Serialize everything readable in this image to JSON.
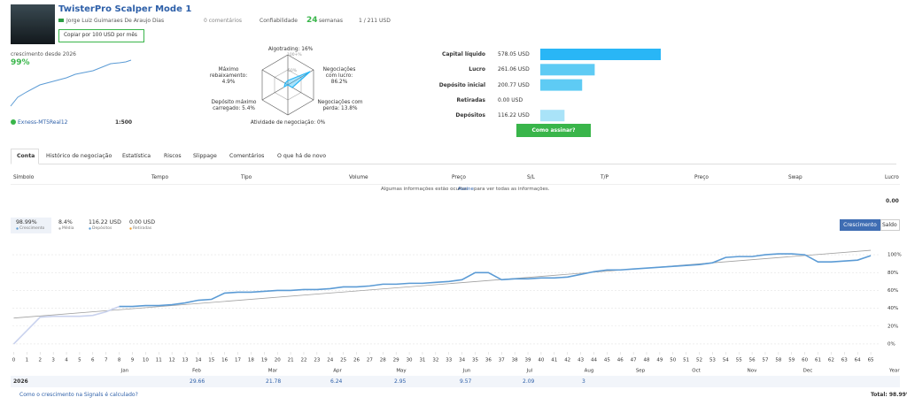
{
  "header": {
    "title": "TwisterPro Scalper Mode 1",
    "author": "Jorge Luiz Guimaraes De Araujo Dias",
    "comments": "0 comentários",
    "reliability": "Confiabilidade",
    "weeks": "24",
    "weeks_unit": "semanas",
    "subscribers": "1 / 211 USD",
    "copy_button": "Copiar por 100 USD por mês"
  },
  "summary": {
    "growth_label": "crescimento desde 2026",
    "growth": "99%",
    "account": "Exness-MT5Real12",
    "leverage": "1:500"
  },
  "radar": {
    "labels": [
      "Algotrading: 16%",
      "Negociações com lucro: 86.2%",
      "Negociações com perda: 13.8%",
      "Atividade de negociação: 0%",
      "Depósito máximo carregado: 5.4%",
      "Máximo rebaixamento: 4.9%"
    ],
    "scale": [
      "100+%",
      "50%"
    ]
  },
  "balance_chart": {
    "type": "bar",
    "categories": [
      "Capital líquido",
      "Lucro",
      "Depósito inicial",
      "Retiradas",
      "Depósitos"
    ],
    "values": [
      578.05,
      261.06,
      200.77,
      0,
      116.22
    ],
    "value_labels": [
      "578.05 USD",
      "261.06 USD",
      "200.77 USD",
      "0.00 USD",
      "116.22 USD"
    ],
    "colors": [
      "#29b6f6",
      "#5ecbf4",
      "#5ecbf4",
      "#5ecbf4",
      "#a9e3f8"
    ],
    "xlim": [
      0,
      578.05
    ]
  },
  "subscribe_button": "Como assinar?",
  "tabs": [
    "Conta",
    "Histórico de negociação",
    "Estatística",
    "Riscos",
    "Slippage",
    "Comentários",
    "O que há de novo"
  ],
  "trades_table": {
    "columns": [
      "Símbolo",
      "Tempo",
      "Tipo",
      "Volume",
      "Preço",
      "S/L",
      "T/P",
      "Preço",
      "Swap",
      "Lucro"
    ],
    "notice_pre": "Algumas informações estão ocultas.",
    "notice_link": "Assine",
    "notice_post": "para ver todas as informações.",
    "total": "0.00"
  },
  "stats": [
    {
      "value": "98.99%",
      "label": "Crescimento"
    },
    {
      "value": "8.4%",
      "label": "Média"
    },
    {
      "value": "116.22 USD",
      "label": "Depósitos"
    },
    {
      "value": "0.00 USD",
      "label": "Retiradas"
    }
  ],
  "toggle": [
    "Crescimento",
    "Saldo"
  ],
  "chart_data": {
    "type": "line",
    "xlim": [
      -0.1,
      65.6
    ],
    "ylim": [
      -9,
      112
    ],
    "xticks": [
      0,
      1,
      2,
      3,
      4,
      5,
      6,
      7,
      8,
      9,
      10,
      11,
      12,
      13,
      14,
      15,
      16,
      17,
      18,
      19,
      20,
      21,
      22,
      23,
      24,
      25,
      26,
      27,
      28,
      29,
      30,
      31,
      32,
      33,
      34,
      35,
      36,
      37,
      38,
      39,
      40,
      41,
      42,
      43,
      44,
      45,
      46,
      47,
      48,
      49,
      50,
      51,
      52,
      53,
      54,
      55,
      56,
      57,
      58,
      59,
      60,
      61,
      62,
      63,
      64,
      65
    ],
    "yticks": [
      {
        "value": 0,
        "label": "0%"
      },
      {
        "value": 20,
        "label": "20%"
      },
      {
        "value": 40,
        "label": "40%"
      },
      {
        "value": 60,
        "label": "60%"
      },
      {
        "value": 80,
        "label": "80%"
      },
      {
        "value": 100,
        "label": "100%"
      }
    ],
    "grid": true,
    "series": [
      {
        "color": "#c9d2ee",
        "values": [
          0,
          15,
          30,
          31,
          31,
          31,
          32,
          36,
          42,
          null,
          null,
          null,
          null,
          null,
          null,
          null,
          null,
          null,
          null,
          null,
          null,
          null,
          null,
          null,
          null,
          null,
          null,
          null,
          null,
          null,
          null,
          null,
          null,
          null,
          null,
          null,
          null,
          null,
          null,
          null,
          null,
          null,
          null,
          null,
          null,
          null,
          null,
          null,
          null,
          null,
          null,
          null,
          null,
          null,
          null,
          null,
          null,
          null,
          null,
          null,
          null,
          null,
          null,
          null,
          null,
          null
        ]
      },
      {
        "color": "#5b9bd5",
        "values": [
          null,
          null,
          null,
          null,
          null,
          null,
          null,
          null,
          42,
          42,
          43,
          43,
          44,
          46,
          49,
          50,
          57,
          58,
          58,
          59,
          60,
          60,
          61,
          61,
          62,
          64,
          64,
          65,
          67,
          67,
          68,
          68,
          69,
          70,
          72,
          80,
          80,
          72,
          73,
          73,
          74,
          74,
          75,
          78,
          81,
          83,
          83,
          84,
          85,
          86,
          87,
          88,
          89,
          91,
          97,
          98,
          98,
          100,
          101,
          101,
          100,
          92,
          92,
          93,
          94,
          98.99
        ]
      }
    ],
    "trend": {
      "color": "#a0a0a0",
      "x": [
        0,
        65
      ],
      "values": [
        29,
        105
      ]
    }
  },
  "growth_table": {
    "months": [
      "Jan",
      "Feb",
      "Mar",
      "Apr",
      "May",
      "Jun",
      "Jul",
      "Aug",
      "Sep",
      "Oct",
      "Nov",
      "Dec"
    ],
    "year_header": "Year",
    "year": "2026",
    "values": [
      null,
      29.66,
      21.78,
      6.24,
      2.95,
      9.57,
      2.09,
      3,
      null,
      null,
      null,
      null
    ],
    "total": "Total: 98.99%",
    "footnote": "Como o crescimento na Signals é calculado?"
  }
}
